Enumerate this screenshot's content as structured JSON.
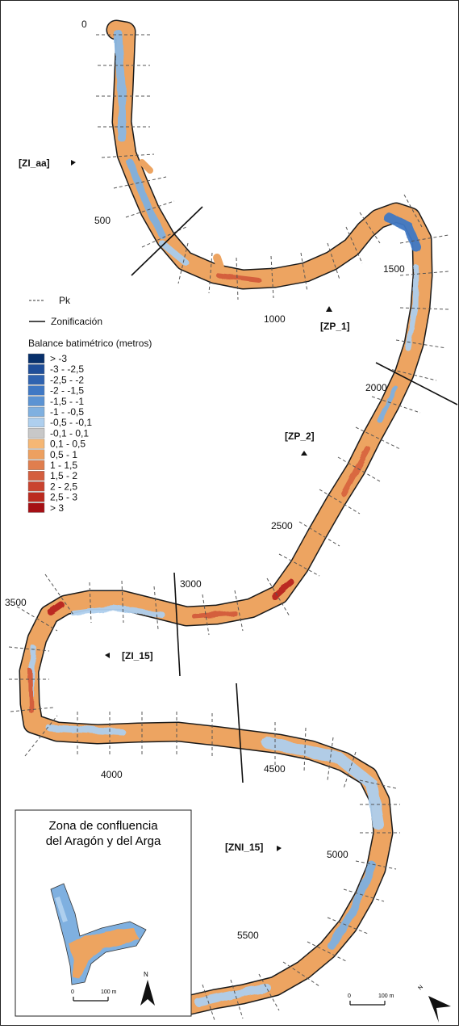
{
  "map": {
    "legend": {
      "pk_label": "Pk",
      "zonificacion_label": "Zonificación",
      "title": "Balance batimétrico (metros)",
      "classes": [
        {
          "label": "> -3",
          "color": "#08306b"
        },
        {
          "label": "-3 - -2,5",
          "color": "#1f4e99"
        },
        {
          "label": "-2,5 - -2",
          "color": "#2f63b0"
        },
        {
          "label": "-2 - -1,5",
          "color": "#3f78c4"
        },
        {
          "label": "-1,5 - -1",
          "color": "#5b93d3"
        },
        {
          "label": "-1 - -0,5",
          "color": "#7fb0e0"
        },
        {
          "label": "-0,5 - -0,1",
          "color": "#aecfee"
        },
        {
          "label": "-0,1 - 0,1",
          "color": "#c8c8c8"
        },
        {
          "label": "0,1 - 0,5",
          "color": "#f5b775"
        },
        {
          "label": "0,5 - 1",
          "color": "#eda060"
        },
        {
          "label": "1 - 1,5",
          "color": "#e07e4e"
        },
        {
          "label": "1,5 - 2",
          "color": "#d45e3e"
        },
        {
          "label": "2 - 2,5",
          "color": "#c9432f"
        },
        {
          "label": "2,5 - 3",
          "color": "#bb2a20"
        },
        {
          "label": "> 3",
          "color": "#a50f15"
        }
      ]
    },
    "pk_labels": [
      "0",
      "500",
      "1000",
      "1500",
      "2000",
      "2500",
      "3000",
      "3500",
      "4000",
      "4500",
      "5000",
      "5500"
    ],
    "zones": [
      "[ZI_aa]",
      "[ZP_1]",
      "[ZP_2]",
      "[ZI_15]",
      "[ZNI_15]"
    ],
    "inset": {
      "title_line1": "Zona de confluencia",
      "title_line2": "del Aragón y del Arga",
      "scale_start": "0",
      "scale_end": "100 m",
      "north": "N"
    },
    "main_scale": {
      "start": "0",
      "end": "100 m"
    },
    "north": "N"
  }
}
